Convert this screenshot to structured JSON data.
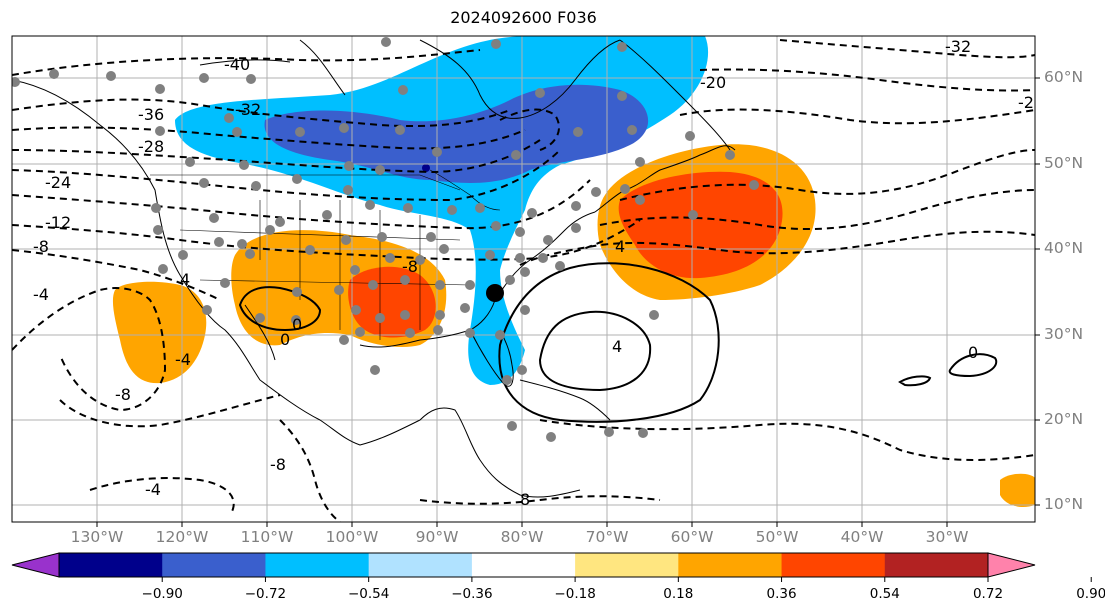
{
  "title": "2024092600 F036",
  "lat_labels": [
    "60°N",
    "50°N",
    "40°N",
    "30°N",
    "20°N",
    "10°N"
  ],
  "lon_labels": [
    "130°W",
    "120°W",
    "110°W",
    "100°W",
    "90°W",
    "80°W",
    "70°W",
    "60°W",
    "50°W",
    "40°W",
    "30°W"
  ],
  "colorbar": {
    "colors": [
      "#9932cc",
      "#00008b",
      "#3a5fcd",
      "#00bfff",
      "#b0e2ff",
      "#ffffff",
      "#ffe680",
      "#ffa500",
      "#ff4500",
      "#b22222",
      "#ff82ab"
    ],
    "labels": [
      "−0.90",
      "−0.72",
      "−0.54",
      "−0.36",
      "−0.18",
      "0.18",
      "0.36",
      "0.54",
      "0.72",
      "0.90"
    ]
  },
  "contour_labels": [
    "-40",
    "-36",
    "-32",
    "-28",
    "-24",
    "-12",
    "-8",
    "-4",
    "-4",
    "-8",
    "0",
    "4",
    "8",
    "-8",
    "4",
    "0",
    "-4",
    "-20",
    "-32",
    "-2",
    "4",
    "0",
    "-8"
  ]
}
